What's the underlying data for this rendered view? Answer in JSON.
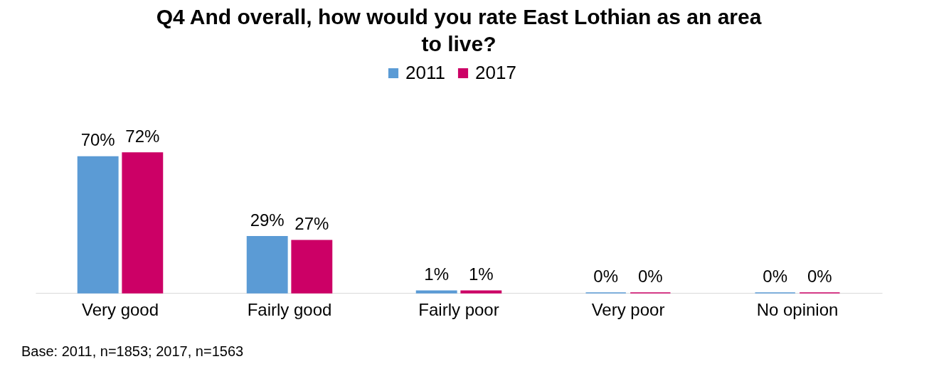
{
  "chart_data": {
    "type": "bar",
    "title": "Q4 And overall, how would you rate East Lothian as an area to live?",
    "categories": [
      "Very good",
      "Fairly good",
      "Fairly poor",
      "Very poor",
      "No opinion"
    ],
    "series": [
      {
        "name": "2011",
        "color": "#5b9bd5",
        "values": [
          70,
          29,
          1,
          0,
          0
        ],
        "value_labels": [
          "70%",
          "29%",
          "1%",
          "0%",
          "0%"
        ]
      },
      {
        "name": "2017",
        "color": "#cc0066",
        "values": [
          72,
          27,
          1,
          0,
          0
        ],
        "value_labels": [
          "72%",
          "27%",
          "1%",
          "0%",
          "0%"
        ]
      }
    ],
    "legend": "top",
    "grid": false,
    "annotations": [
      "Base: 2011, n=1853; 2017, n=1563"
    ]
  }
}
